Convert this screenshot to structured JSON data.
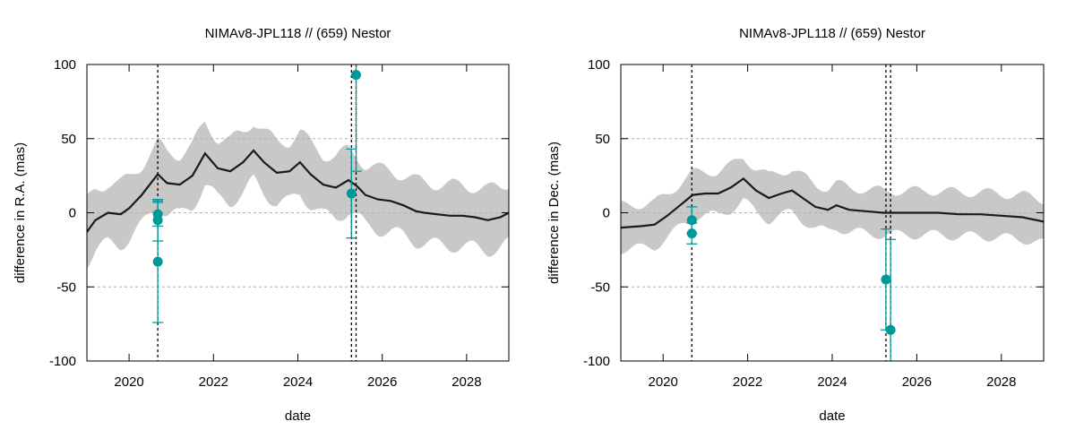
{
  "chart_data": [
    {
      "type": "scatter",
      "title": "NIMAv8-JPL118 // (659) Nestor",
      "xlabel": "date",
      "ylabel": "difference in R.A. (mas)",
      "xlim": [
        2019.0,
        2029.0
      ],
      "ylim": [
        -100,
        100
      ],
      "xticks": [
        2020,
        2022,
        2024,
        2026,
        2028
      ],
      "yticks": [
        -100,
        -50,
        0,
        50,
        100
      ],
      "grid": true,
      "colors": {
        "model": "#1a1a1a",
        "band": "#c8c8c8",
        "obs": "#009999",
        "epoch": "#000000"
      },
      "epoch_lines": [
        2020.68,
        2025.27,
        2025.38
      ],
      "model_curve": {
        "x": [
          2019.0,
          2019.2,
          2019.5,
          2019.8,
          2020.0,
          2020.3,
          2020.68,
          2020.9,
          2021.2,
          2021.5,
          2021.8,
          2022.1,
          2022.4,
          2022.7,
          2022.95,
          2023.2,
          2023.5,
          2023.8,
          2024.05,
          2024.3,
          2024.6,
          2024.9,
          2025.2,
          2025.4,
          2025.6,
          2025.9,
          2026.2,
          2026.5,
          2026.8,
          2027.0,
          2027.3,
          2027.6,
          2027.9,
          2028.2,
          2028.5,
          2028.8,
          2029.0
        ],
        "y": [
          -13,
          -5,
          0,
          -1,
          3,
          12,
          26,
          20,
          19,
          25,
          40,
          30,
          28,
          34,
          42,
          34,
          27,
          28,
          34,
          26,
          19,
          17,
          22,
          18,
          12,
          9,
          8,
          5,
          1,
          0,
          -1,
          -2,
          -2,
          -3,
          -5,
          -3,
          0
        ]
      },
      "band_halfwidth": 25,
      "observations": [
        {
          "x": 2020.68,
          "y": -1,
          "err": 8
        },
        {
          "x": 2020.68,
          "y": -5,
          "err": 14
        },
        {
          "x": 2020.68,
          "y": -33,
          "err": 41
        },
        {
          "x": 2025.27,
          "y": 13,
          "err": 30
        },
        {
          "x": 2025.38,
          "y": 93,
          "err": 65
        }
      ]
    },
    {
      "type": "scatter",
      "title": "NIMAv8-JPL118 // (659) Nestor",
      "xlabel": "date",
      "ylabel": "difference in Dec. (mas)",
      "xlim": [
        2019.0,
        2029.0
      ],
      "ylim": [
        -100,
        100
      ],
      "xticks": [
        2020,
        2022,
        2024,
        2026,
        2028
      ],
      "yticks": [
        -100,
        -50,
        0,
        50,
        100
      ],
      "grid": true,
      "colors": {
        "model": "#1a1a1a",
        "band": "#c8c8c8",
        "obs": "#009999",
        "epoch": "#000000"
      },
      "epoch_lines": [
        2020.68,
        2025.27,
        2025.38
      ],
      "model_curve": {
        "x": [
          2019.0,
          2019.5,
          2019.8,
          2020.1,
          2020.4,
          2020.7,
          2021.0,
          2021.3,
          2021.6,
          2021.9,
          2022.2,
          2022.5,
          2022.8,
          2023.05,
          2023.3,
          2023.6,
          2023.9,
          2024.1,
          2024.4,
          2024.8,
          2025.2,
          2025.6,
          2026.0,
          2026.5,
          2027.0,
          2027.5,
          2028.0,
          2028.5,
          2029.0
        ],
        "y": [
          -10,
          -9,
          -8,
          -2,
          5,
          12,
          13,
          13,
          17,
          23,
          15,
          10,
          13,
          15,
          10,
          4,
          2,
          5,
          2,
          1,
          0,
          0,
          0,
          0,
          -1,
          -1,
          -2,
          -3,
          -6
        ]
      },
      "band_halfwidth": 18,
      "observations": [
        {
          "x": 2020.68,
          "y": -5,
          "err": 9
        },
        {
          "x": 2020.68,
          "y": -14,
          "err": 7
        },
        {
          "x": 2025.27,
          "y": -45,
          "err": 34
        },
        {
          "x": 2025.38,
          "y": -79,
          "err": 61
        }
      ]
    }
  ]
}
